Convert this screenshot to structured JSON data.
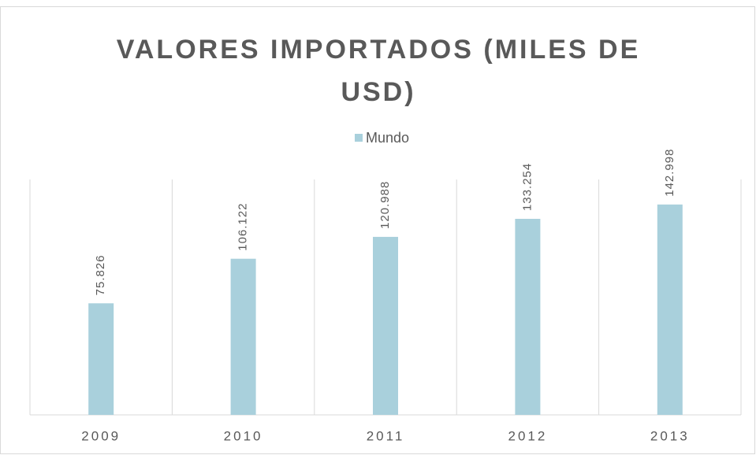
{
  "chart_data": {
    "type": "bar",
    "title": "VALORES IMPORTADOS (MILES DE USD)",
    "categories": [
      "2009",
      "2010",
      "2011",
      "2012",
      "2013"
    ],
    "series": [
      {
        "name": "Mundo",
        "color": "#a9d0dc",
        "values": [
          75826,
          106122,
          120988,
          133254,
          142998
        ],
        "value_labels": [
          "75.826",
          "106.122",
          "120.988",
          "133.254",
          "142.998"
        ]
      }
    ],
    "ylim": [
      0,
      160000
    ]
  }
}
